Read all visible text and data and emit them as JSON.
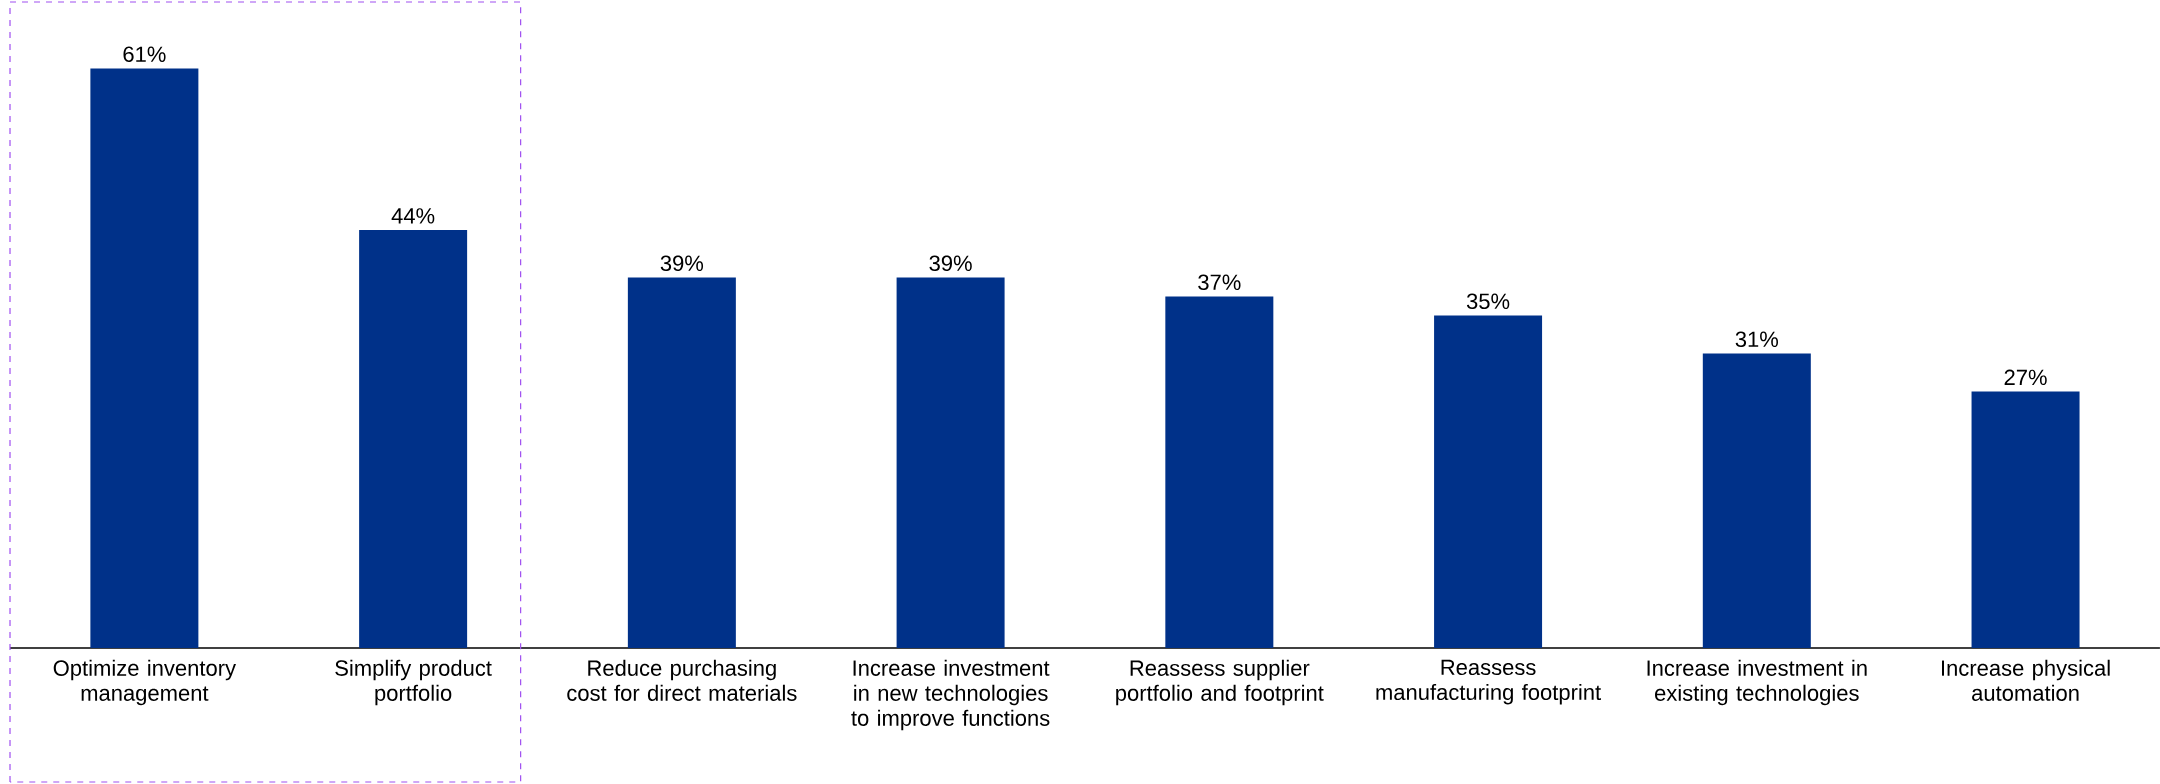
{
  "chart_data": {
    "type": "bar",
    "categories": [
      "Optimize inventory management",
      "Simplify product portfolio",
      "Reduce purchasing cost for direct materials",
      "Increase investment in new technologies to improve functions",
      "Reassess supplier portfolio and footprint",
      "Reassess manufacturing footprint",
      "Increase investment in existing technologies",
      "Increase physical automation"
    ],
    "values": [
      61,
      44,
      39,
      39,
      37,
      35,
      31,
      27
    ],
    "value_labels": [
      "61%",
      "44%",
      "39%",
      "39%",
      "37%",
      "35%",
      "31%",
      "27%"
    ],
    "color": "#003189"
  }
}
